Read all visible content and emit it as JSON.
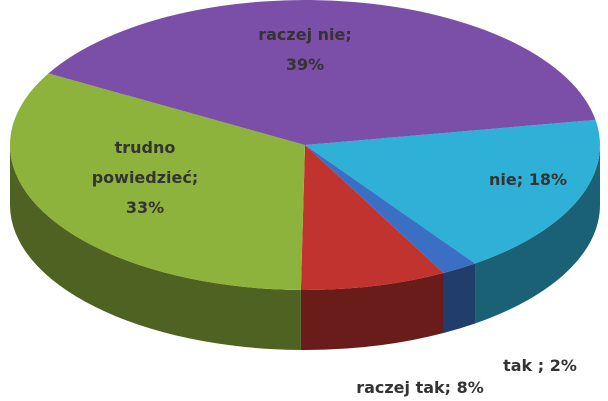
{
  "chart_data": {
    "type": "pie3d",
    "categories": [
      "nie;",
      "tak ;",
      "raczej tak;",
      "trudno powiedzieć;",
      "raczej nie;"
    ],
    "values": [
      18,
      2,
      8,
      33,
      39
    ],
    "value_labels": [
      "18%",
      "2%",
      "8%",
      "33%",
      "39%"
    ],
    "colors": [
      "#2fb0d6",
      "#3a6fc4",
      "#c0332f",
      "#8db33c",
      "#7b4fa8"
    ]
  }
}
